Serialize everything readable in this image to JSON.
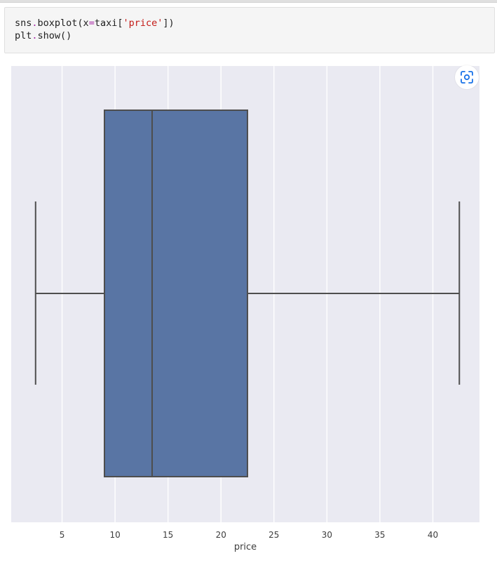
{
  "notebook": {
    "cell_code": {
      "line1": {
        "t1": "sns",
        "t2": ".",
        "t3": "boxplot(x",
        "t4": "=",
        "t5": "taxi[",
        "t6": "'price'",
        "t7": "])"
      },
      "line2": {
        "t1": "plt",
        "t2": ".",
        "t3": "show()"
      }
    },
    "output_toolbar": {
      "icon": "focus-expand-icon"
    }
  },
  "colors": {
    "plot_background": "#eaeaf2",
    "box_fill": "#5975a4",
    "box_edge": "#4e4e4e",
    "grid": "#ffffff",
    "tick_label": "#3d3d3d",
    "icon_accent": "#1a73e8"
  },
  "chart_data": {
    "type": "box",
    "xlabel": "price",
    "ylabel": "",
    "xlim": [
      0.2,
      44.4
    ],
    "xticks": [
      5,
      10,
      15,
      20,
      25,
      30,
      35,
      40
    ],
    "orientation": "horizontal",
    "grid": true,
    "series": [
      {
        "whisker_low": 2.5,
        "q1": 9.0,
        "median": 13.5,
        "q3": 22.5,
        "whisker_high": 42.5
      }
    ]
  }
}
